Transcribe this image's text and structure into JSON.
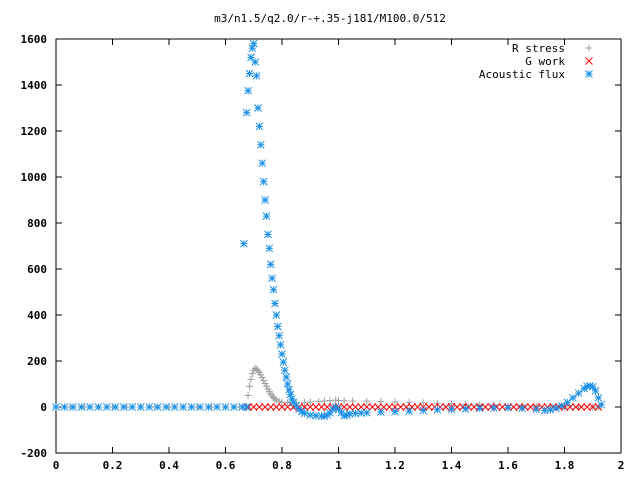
{
  "chart_data": {
    "type": "scatter",
    "title": "m3/n1.5/q2.0/r-+.35-j181/M100.0/512",
    "xlabel": "",
    "ylabel": "",
    "xlim": [
      0,
      2
    ],
    "ylim": [
      -200,
      1600
    ],
    "x_ticks": [
      "0",
      "0.2",
      "0.4",
      "0.6",
      "0.8",
      "1",
      "1.2",
      "1.4",
      "1.6",
      "1.8",
      "2"
    ],
    "y_ticks": [
      "-200",
      "0",
      "200",
      "400",
      "600",
      "800",
      "1000",
      "1200",
      "1400",
      "1600"
    ],
    "legend_position": "top-right",
    "grid": false,
    "series": [
      {
        "name": "R stress",
        "marker": "plus",
        "color": "#a0a0a0",
        "points": [
          [
            0.0,
            0
          ],
          [
            0.05,
            0
          ],
          [
            0.1,
            0
          ],
          [
            0.15,
            0
          ],
          [
            0.2,
            0
          ],
          [
            0.25,
            0
          ],
          [
            0.3,
            0
          ],
          [
            0.35,
            0
          ],
          [
            0.4,
            0
          ],
          [
            0.45,
            0
          ],
          [
            0.5,
            0
          ],
          [
            0.55,
            0
          ],
          [
            0.6,
            0
          ],
          [
            0.65,
            0
          ],
          [
            0.675,
            0
          ],
          [
            0.68,
            50
          ],
          [
            0.685,
            90
          ],
          [
            0.69,
            120
          ],
          [
            0.695,
            145
          ],
          [
            0.7,
            160
          ],
          [
            0.705,
            168
          ],
          [
            0.71,
            165
          ],
          [
            0.715,
            158
          ],
          [
            0.72,
            150
          ],
          [
            0.725,
            140
          ],
          [
            0.73,
            128
          ],
          [
            0.735,
            115
          ],
          [
            0.74,
            102
          ],
          [
            0.745,
            90
          ],
          [
            0.75,
            78
          ],
          [
            0.755,
            67
          ],
          [
            0.76,
            57
          ],
          [
            0.765,
            48
          ],
          [
            0.77,
            41
          ],
          [
            0.775,
            35
          ],
          [
            0.78,
            30
          ],
          [
            0.79,
            24
          ],
          [
            0.8,
            20
          ],
          [
            0.82,
            18
          ],
          [
            0.85,
            19
          ],
          [
            0.88,
            20
          ],
          [
            0.9,
            22
          ],
          [
            0.93,
            24
          ],
          [
            0.95,
            26
          ],
          [
            0.97,
            28
          ],
          [
            0.99,
            30
          ],
          [
            1.0,
            28
          ],
          [
            1.02,
            27
          ],
          [
            1.05,
            26
          ],
          [
            1.1,
            25
          ],
          [
            1.15,
            24
          ],
          [
            1.2,
            22
          ],
          [
            1.25,
            20
          ],
          [
            1.3,
            18
          ],
          [
            1.35,
            16
          ],
          [
            1.4,
            14
          ],
          [
            1.45,
            12
          ],
          [
            1.5,
            10
          ],
          [
            1.55,
            8
          ],
          [
            1.6,
            6
          ],
          [
            1.65,
            4
          ],
          [
            1.7,
            2
          ],
          [
            1.75,
            0
          ],
          [
            1.8,
            0
          ],
          [
            1.85,
            0
          ],
          [
            1.9,
            0
          ],
          [
            1.92,
            0
          ]
        ]
      },
      {
        "name": "G work",
        "marker": "cross",
        "color": "#ff0000",
        "points": [
          [
            0.68,
            0
          ],
          [
            0.7,
            0
          ],
          [
            0.72,
            0
          ],
          [
            0.74,
            0
          ],
          [
            0.76,
            0
          ],
          [
            0.78,
            0
          ],
          [
            0.8,
            0
          ],
          [
            0.82,
            0
          ],
          [
            0.84,
            0
          ],
          [
            0.86,
            0
          ],
          [
            0.88,
            0
          ],
          [
            0.9,
            0
          ],
          [
            0.92,
            0
          ],
          [
            0.94,
            0
          ],
          [
            0.96,
            0
          ],
          [
            0.98,
            0
          ],
          [
            1.0,
            0
          ],
          [
            1.02,
            0
          ],
          [
            1.04,
            0
          ],
          [
            1.06,
            0
          ],
          [
            1.08,
            0
          ],
          [
            1.1,
            0
          ],
          [
            1.12,
            0
          ],
          [
            1.14,
            0
          ],
          [
            1.16,
            0
          ],
          [
            1.18,
            0
          ],
          [
            1.2,
            0
          ],
          [
            1.22,
            0
          ],
          [
            1.24,
            0
          ],
          [
            1.26,
            0
          ],
          [
            1.28,
            0
          ],
          [
            1.3,
            0
          ],
          [
            1.32,
            0
          ],
          [
            1.34,
            0
          ],
          [
            1.36,
            0
          ],
          [
            1.38,
            0
          ],
          [
            1.4,
            0
          ],
          [
            1.42,
            0
          ],
          [
            1.44,
            0
          ],
          [
            1.46,
            0
          ],
          [
            1.48,
            0
          ],
          [
            1.5,
            0
          ],
          [
            1.52,
            0
          ],
          [
            1.54,
            0
          ],
          [
            1.56,
            0
          ],
          [
            1.58,
            0
          ],
          [
            1.6,
            0
          ],
          [
            1.62,
            0
          ],
          [
            1.64,
            0
          ],
          [
            1.66,
            0
          ],
          [
            1.68,
            0
          ],
          [
            1.7,
            0
          ],
          [
            1.72,
            0
          ],
          [
            1.74,
            0
          ],
          [
            1.76,
            0
          ],
          [
            1.78,
            0
          ],
          [
            1.8,
            0
          ],
          [
            1.82,
            0
          ],
          [
            1.84,
            0
          ],
          [
            1.86,
            0
          ],
          [
            1.88,
            0
          ],
          [
            1.9,
            0
          ],
          [
            1.92,
            0
          ]
        ]
      },
      {
        "name": "Acoustic flux",
        "marker": "star",
        "color": "#1a8fe6",
        "points": [
          [
            0.0,
            0
          ],
          [
            0.03,
            0
          ],
          [
            0.06,
            0
          ],
          [
            0.09,
            0
          ],
          [
            0.12,
            0
          ],
          [
            0.15,
            0
          ],
          [
            0.18,
            0
          ],
          [
            0.21,
            0
          ],
          [
            0.24,
            0
          ],
          [
            0.27,
            0
          ],
          [
            0.3,
            0
          ],
          [
            0.33,
            0
          ],
          [
            0.36,
            0
          ],
          [
            0.39,
            0
          ],
          [
            0.42,
            0
          ],
          [
            0.45,
            0
          ],
          [
            0.48,
            0
          ],
          [
            0.51,
            0
          ],
          [
            0.54,
            0
          ],
          [
            0.57,
            0
          ],
          [
            0.6,
            0
          ],
          [
            0.63,
            0
          ],
          [
            0.66,
            0
          ],
          [
            0.675,
            0
          ],
          [
            0.665,
            710
          ],
          [
            0.675,
            1280
          ],
          [
            0.68,
            1375
          ],
          [
            0.685,
            1450
          ],
          [
            0.69,
            1520
          ],
          [
            0.695,
            1560
          ],
          [
            0.7,
            1580
          ],
          [
            0.705,
            1500
          ],
          [
            0.71,
            1440
          ],
          [
            0.715,
            1300
          ],
          [
            0.72,
            1220
          ],
          [
            0.725,
            1140
          ],
          [
            0.73,
            1060
          ],
          [
            0.735,
            980
          ],
          [
            0.74,
            900
          ],
          [
            0.745,
            830
          ],
          [
            0.75,
            750
          ],
          [
            0.755,
            690
          ],
          [
            0.76,
            620
          ],
          [
            0.765,
            560
          ],
          [
            0.77,
            510
          ],
          [
            0.775,
            450
          ],
          [
            0.78,
            400
          ],
          [
            0.785,
            350
          ],
          [
            0.79,
            310
          ],
          [
            0.795,
            270
          ],
          [
            0.8,
            230
          ],
          [
            0.805,
            195
          ],
          [
            0.81,
            160
          ],
          [
            0.815,
            130
          ],
          [
            0.82,
            100
          ],
          [
            0.825,
            75
          ],
          [
            0.83,
            55
          ],
          [
            0.835,
            35
          ],
          [
            0.84,
            20
          ],
          [
            0.85,
            5
          ],
          [
            0.86,
            -10
          ],
          [
            0.87,
            -20
          ],
          [
            0.88,
            -28
          ],
          [
            0.9,
            -35
          ],
          [
            0.92,
            -38
          ],
          [
            0.94,
            -40
          ],
          [
            0.95,
            -40
          ],
          [
            0.96,
            -35
          ],
          [
            0.97,
            -25
          ],
          [
            0.98,
            -10
          ],
          [
            0.99,
            0
          ],
          [
            1.0,
            -10
          ],
          [
            1.01,
            -25
          ],
          [
            1.02,
            -38
          ],
          [
            1.03,
            -35
          ],
          [
            1.04,
            -30
          ],
          [
            1.06,
            -28
          ],
          [
            1.08,
            -26
          ],
          [
            1.1,
            -25
          ],
          [
            1.15,
            -22
          ],
          [
            1.2,
            -20
          ],
          [
            1.25,
            -18
          ],
          [
            1.3,
            -15
          ],
          [
            1.35,
            -12
          ],
          [
            1.4,
            -10
          ],
          [
            1.45,
            -8
          ],
          [
            1.5,
            -6
          ],
          [
            1.55,
            -4
          ],
          [
            1.6,
            -3
          ],
          [
            1.65,
            -5
          ],
          [
            1.7,
            -10
          ],
          [
            1.73,
            -15
          ],
          [
            1.75,
            -12
          ],
          [
            1.77,
            -5
          ],
          [
            1.79,
            5
          ],
          [
            1.81,
            20
          ],
          [
            1.83,
            40
          ],
          [
            1.85,
            60
          ],
          [
            1.87,
            80
          ],
          [
            1.88,
            90
          ],
          [
            1.89,
            92
          ],
          [
            1.9,
            88
          ],
          [
            1.91,
            70
          ],
          [
            1.92,
            40
          ],
          [
            1.93,
            10
          ]
        ]
      }
    ]
  }
}
